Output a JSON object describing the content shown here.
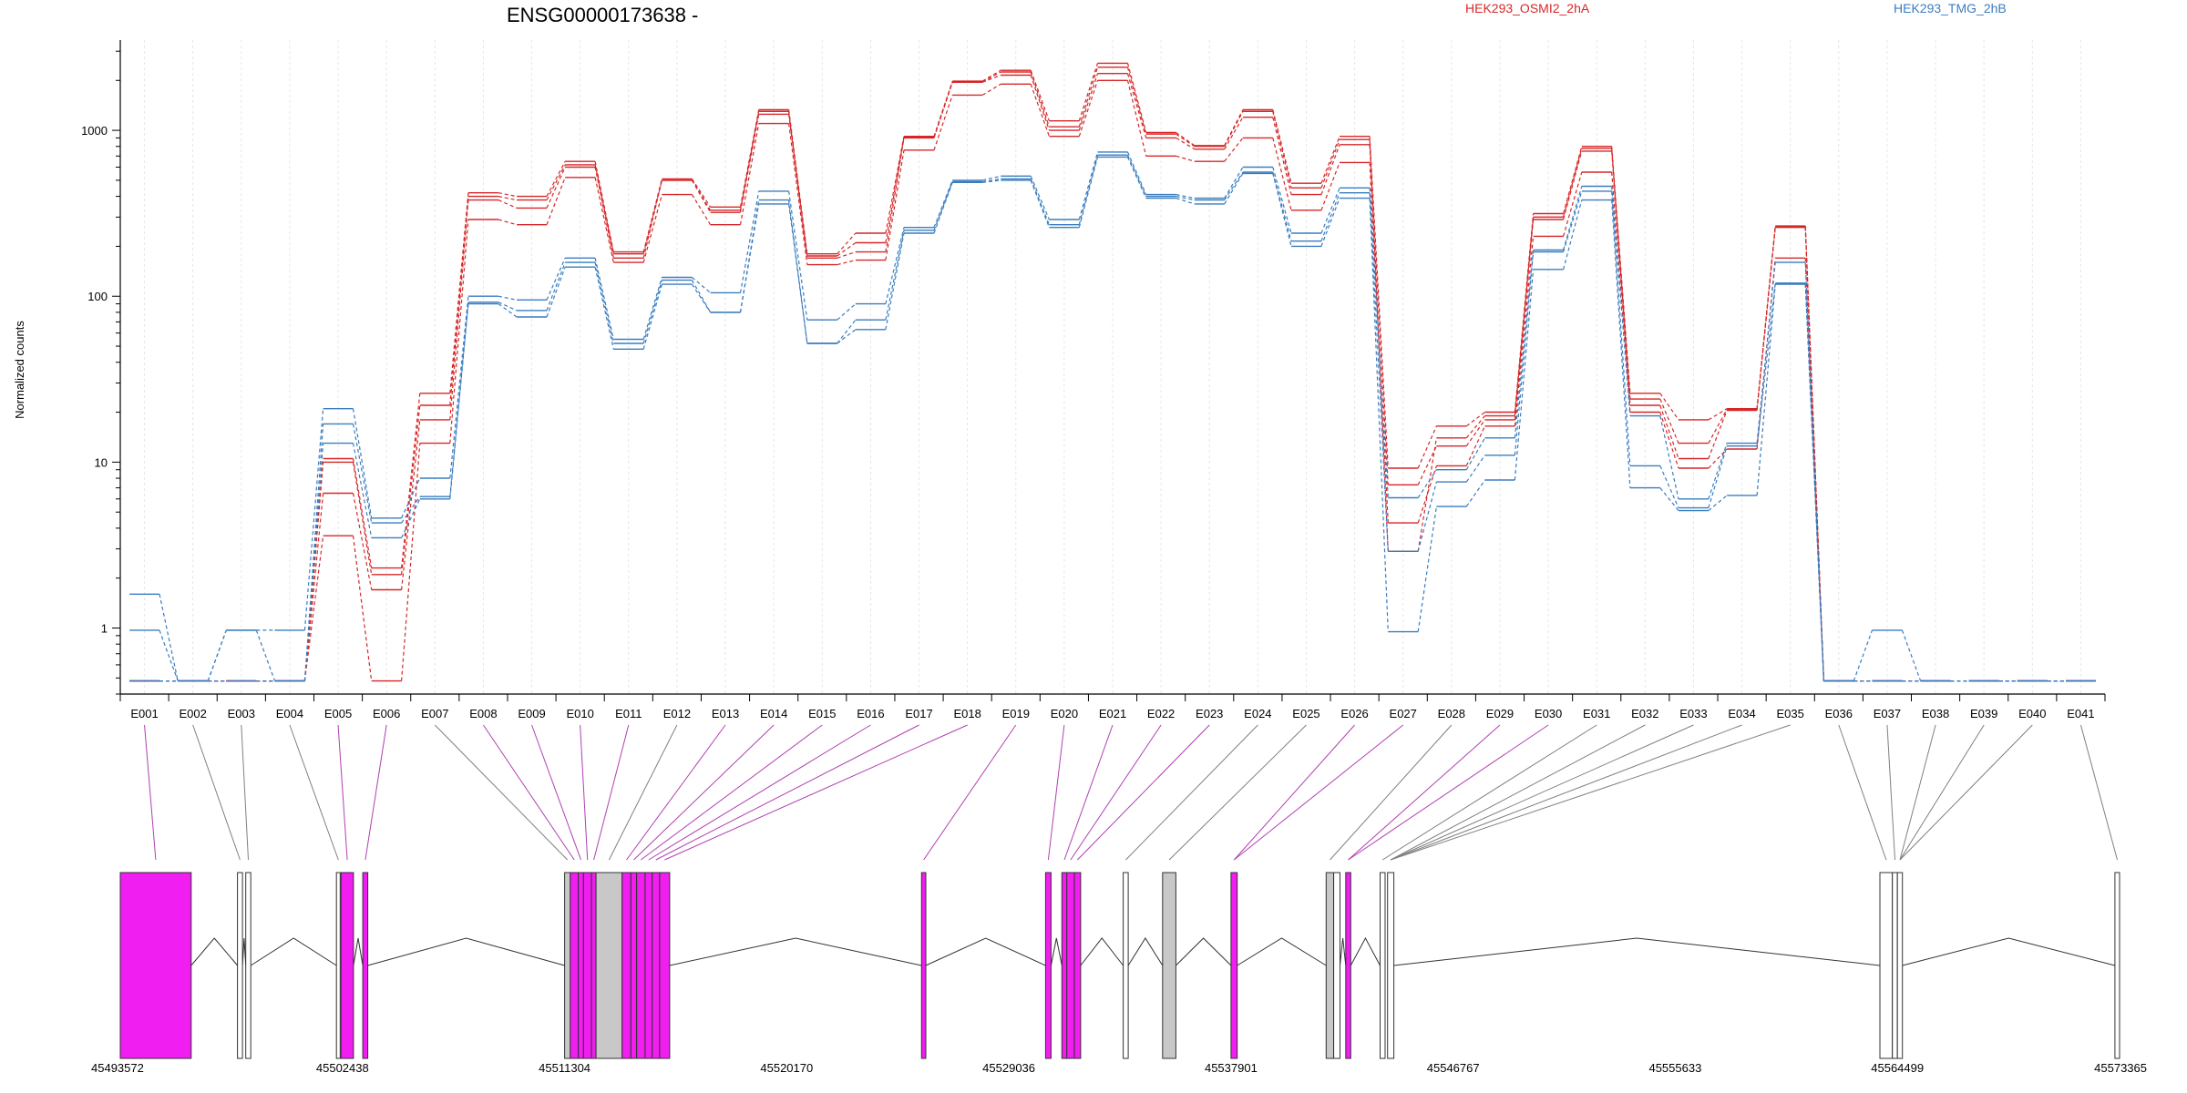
{
  "chart_data": {
    "type": "line",
    "title": "ENSG00000173638 -",
    "ylabel": "Normalized counts",
    "yscale": "log",
    "ylim": [
      0.4,
      3500
    ],
    "yticks": [
      1,
      10,
      100,
      1000
    ],
    "ytick_labels": [
      "1",
      "10",
      "100",
      "1000"
    ],
    "grid": "vertical exon guides",
    "legend": [
      {
        "name": "HEK293_OSMI2_2hA",
        "color": "#d62728"
      },
      {
        "name": "HEK293_TMG_2hB",
        "color": "#3a7dbf"
      }
    ],
    "categories": [
      "E001",
      "E002",
      "E003",
      "E004",
      "E005",
      "E006",
      "E007",
      "E008",
      "E009",
      "E010",
      "E011",
      "E012",
      "E013",
      "E014",
      "E015",
      "E016",
      "E017",
      "E018",
      "E019",
      "E020",
      "E021",
      "E022",
      "E023",
      "E024",
      "E025",
      "E026",
      "E027",
      "E028",
      "E029",
      "E030",
      "E031",
      "E032",
      "E033",
      "E034",
      "E035",
      "E036",
      "E037",
      "E038",
      "E039",
      "E040",
      "E041"
    ],
    "series": [
      {
        "group": "HEK293_OSMI2_2hA",
        "color": "#d62728",
        "values": [
          0.48,
          0.48,
          0.48,
          0.48,
          10.5,
          2.3,
          26,
          420,
          400,
          650,
          185,
          510,
          345,
          1330,
          180,
          240,
          920,
          1980,
          2300,
          1140,
          2540,
          970,
          810,
          1330,
          480,
          920,
          9.2,
          16.5,
          20,
          315,
          800,
          26,
          18,
          21,
          265,
          0.48,
          0.48,
          0.48,
          0.48,
          0.48,
          0.48
        ]
      },
      {
        "group": "HEK293_OSMI2_2hA",
        "color": "#d62728",
        "values": [
          0.48,
          0.48,
          0.48,
          0.48,
          6.5,
          1.7,
          18,
          380,
          340,
          600,
          170,
          500,
          320,
          1250,
          170,
          185,
          900,
          1950,
          2150,
          1000,
          2200,
          900,
          770,
          1200,
          410,
          820,
          7.3,
          12.5,
          18,
          290,
          750,
          22,
          10.5,
          20.5,
          260,
          0.48,
          0.48,
          0.48,
          0.48,
          0.48,
          0.48
        ]
      },
      {
        "group": "HEK293_OSMI2_2hA",
        "color": "#d62728",
        "values": [
          0.48,
          0.48,
          0.48,
          0.48,
          3.6,
          0.48,
          13,
          290,
          270,
          520,
          160,
          410,
          270,
          1100,
          155,
          165,
          760,
          1630,
          1900,
          920,
          2000,
          700,
          650,
          900,
          330,
          640,
          4.3,
          9.5,
          16.5,
          230,
          560,
          20,
          9.2,
          12,
          170,
          0.48,
          0.48,
          0.48,
          0.48,
          0.48,
          0.48
        ]
      },
      {
        "group": "HEK293_OSMI2_2hA",
        "color": "#d62728",
        "values": [
          0.48,
          0.48,
          0.48,
          0.48,
          10,
          2.1,
          22,
          400,
          380,
          620,
          180,
          500,
          330,
          1300,
          175,
          210,
          910,
          1960,
          2250,
          1050,
          2400,
          950,
          800,
          1300,
          450,
          880,
          2.9,
          14,
          19,
          300,
          780,
          24,
          13,
          20.8,
          263,
          0.48,
          0.48,
          0.48,
          0.48,
          0.48,
          0.48
        ]
      },
      {
        "group": "HEK293_TMG_2hB",
        "color": "#3a7dbf",
        "values": [
          1.6,
          0.48,
          0.97,
          0.97,
          21,
          4.6,
          8,
          100,
          95,
          170,
          55,
          130,
          105,
          430,
          72,
          90,
          260,
          500,
          530,
          290,
          740,
          410,
          390,
          600,
          240,
          450,
          6.1,
          9,
          14,
          190,
          460,
          19,
          6,
          13,
          160,
          0.48,
          0.97,
          0.48,
          0.48,
          0.48,
          0.48
        ]
      },
      {
        "group": "HEK293_TMG_2hB",
        "color": "#3a7dbf",
        "values": [
          0.97,
          0.48,
          0.97,
          0.48,
          17,
          4.3,
          6.2,
          92,
          82,
          160,
          52,
          125,
          80,
          380,
          52,
          72,
          250,
          490,
          510,
          270,
          710,
          400,
          380,
          560,
          215,
          420,
          2.9,
          7.6,
          11,
          185,
          430,
          9.5,
          5.3,
          12.5,
          120,
          0.48,
          0.48,
          0.48,
          0.48,
          0.48,
          0.48
        ]
      },
      {
        "group": "HEK293_TMG_2hB",
        "color": "#3a7dbf",
        "values": [
          0.48,
          0.48,
          0.48,
          0.48,
          13,
          3.5,
          6,
          90,
          75,
          150,
          48,
          118,
          80,
          360,
          52,
          63,
          240,
          485,
          500,
          260,
          690,
          390,
          360,
          550,
          200,
          390,
          0.95,
          5.4,
          7.8,
          145,
          380,
          7,
          5.1,
          6.3,
          118,
          0.48,
          0.48,
          0.48,
          0.48,
          0.48,
          0.48
        ]
      }
    ],
    "gene_coordinates": [
      "45493572",
      "45502438",
      "45511304",
      "45520170",
      "45529036",
      "45537901",
      "45546767",
      "45555633",
      "45564499",
      "45573365"
    ]
  },
  "gene_model": {
    "track_start": 45493572,
    "track_end": 45573365,
    "exon_colors": {
      "significant": "#f01ef0",
      "normal": "#ffffff",
      "gray": "#c8c8c8",
      "link_significant": "#b040b0",
      "link_normal": "#808080"
    },
    "exons": [
      {
        "start": 45493572,
        "end": 45496400,
        "kind": "significant"
      },
      {
        "start": 45498250,
        "end": 45498450,
        "kind": "normal"
      },
      {
        "start": 45498580,
        "end": 45498780,
        "kind": "normal"
      },
      {
        "start": 45502200,
        "end": 45502350,
        "kind": "normal"
      },
      {
        "start": 45502380,
        "end": 45502880,
        "kind": "significant"
      },
      {
        "start": 45503250,
        "end": 45503450,
        "kind": "significant"
      },
      {
        "start": 45511304,
        "end": 45511530,
        "kind": "gray"
      },
      {
        "start": 45511530,
        "end": 45511850,
        "kind": "significant"
      },
      {
        "start": 45511850,
        "end": 45512060,
        "kind": "significant"
      },
      {
        "start": 45512060,
        "end": 45512380,
        "kind": "significant"
      },
      {
        "start": 45512380,
        "end": 45512560,
        "kind": "significant"
      },
      {
        "start": 45512560,
        "end": 45513600,
        "kind": "gray"
      },
      {
        "start": 45513600,
        "end": 45513950,
        "kind": "significant"
      },
      {
        "start": 45513950,
        "end": 45514180,
        "kind": "significant"
      },
      {
        "start": 45514180,
        "end": 45514520,
        "kind": "significant"
      },
      {
        "start": 45514520,
        "end": 45514800,
        "kind": "significant"
      },
      {
        "start": 45514800,
        "end": 45515100,
        "kind": "significant"
      },
      {
        "start": 45515100,
        "end": 45515500,
        "kind": "significant"
      },
      {
        "start": 45525550,
        "end": 45525720,
        "kind": "significant"
      },
      {
        "start": 45530500,
        "end": 45530720,
        "kind": "significant"
      },
      {
        "start": 45531150,
        "end": 45531350,
        "kind": "significant"
      },
      {
        "start": 45531350,
        "end": 45531650,
        "kind": "significant"
      },
      {
        "start": 45531650,
        "end": 45531900,
        "kind": "significant"
      },
      {
        "start": 45533600,
        "end": 45533800,
        "kind": "normal"
      },
      {
        "start": 45535170,
        "end": 45535700,
        "kind": "gray"
      },
      {
        "start": 45537901,
        "end": 45538150,
        "kind": "significant"
      },
      {
        "start": 45541700,
        "end": 45542000,
        "kind": "gray"
      },
      {
        "start": 45542000,
        "end": 45542250,
        "kind": "normal"
      },
      {
        "start": 45542480,
        "end": 45542680,
        "kind": "significant"
      },
      {
        "start": 45543850,
        "end": 45544050,
        "kind": "normal"
      },
      {
        "start": 45544150,
        "end": 45544400,
        "kind": "normal"
      },
      {
        "start": 45563800,
        "end": 45564300,
        "kind": "normal"
      },
      {
        "start": 45564300,
        "end": 45564500,
        "kind": "normal"
      },
      {
        "start": 45564500,
        "end": 45564700,
        "kind": "normal"
      },
      {
        "start": 45573180,
        "end": 45573365,
        "kind": "normal"
      }
    ],
    "links": [
      {
        "exon": 0,
        "kind": "significant"
      },
      {
        "exon": 1,
        "kind": "normal"
      },
      {
        "exon": 2,
        "kind": "normal"
      },
      {
        "exon": 3,
        "kind": "normal"
      },
      {
        "exon": 4,
        "kind": "significant"
      },
      {
        "exon": 5,
        "kind": "significant"
      },
      {
        "exon": 6,
        "kind": "normal"
      },
      {
        "exon": 7,
        "kind": "significant"
      },
      {
        "exon": 8,
        "kind": "significant"
      },
      {
        "exon": 9,
        "kind": "significant"
      },
      {
        "exon": 10,
        "kind": "significant"
      },
      {
        "exon": 11,
        "kind": "normal"
      },
      {
        "exon": 12,
        "kind": "significant"
      },
      {
        "exon": 13,
        "kind": "significant"
      },
      {
        "exon": 14,
        "kind": "significant"
      },
      {
        "exon": 15,
        "kind": "significant"
      },
      {
        "exon": 16,
        "kind": "significant"
      },
      {
        "exon": 17,
        "kind": "significant"
      },
      {
        "exon": 18,
        "kind": "significant"
      },
      {
        "exon": 19,
        "kind": "significant"
      },
      {
        "exon": 20,
        "kind": "significant"
      },
      {
        "exon": 21,
        "kind": "significant"
      },
      {
        "exon": 22,
        "kind": "significant"
      },
      {
        "exon": 23,
        "kind": "normal"
      },
      {
        "exon": 24,
        "kind": "normal"
      },
      {
        "exon": 25,
        "kind": "significant"
      },
      {
        "exon": 25,
        "kind": "significant"
      },
      {
        "exon": 26,
        "kind": "normal"
      },
      {
        "exon": 28,
        "kind": "significant"
      },
      {
        "exon": 28,
        "kind": "significant"
      },
      {
        "exon": 29,
        "kind": "normal"
      },
      {
        "exon": 30,
        "kind": "normal"
      },
      {
        "exon": 30,
        "kind": "normal"
      },
      {
        "exon": 30,
        "kind": "normal"
      },
      {
        "exon": 30,
        "kind": "normal"
      },
      {
        "exon": 31,
        "kind": "normal"
      },
      {
        "exon": 32,
        "kind": "normal"
      },
      {
        "exon": 33,
        "kind": "normal"
      },
      {
        "exon": 33,
        "kind": "normal"
      },
      {
        "exon": 33,
        "kind": "normal"
      },
      {
        "exon": 34,
        "kind": "normal"
      }
    ]
  }
}
